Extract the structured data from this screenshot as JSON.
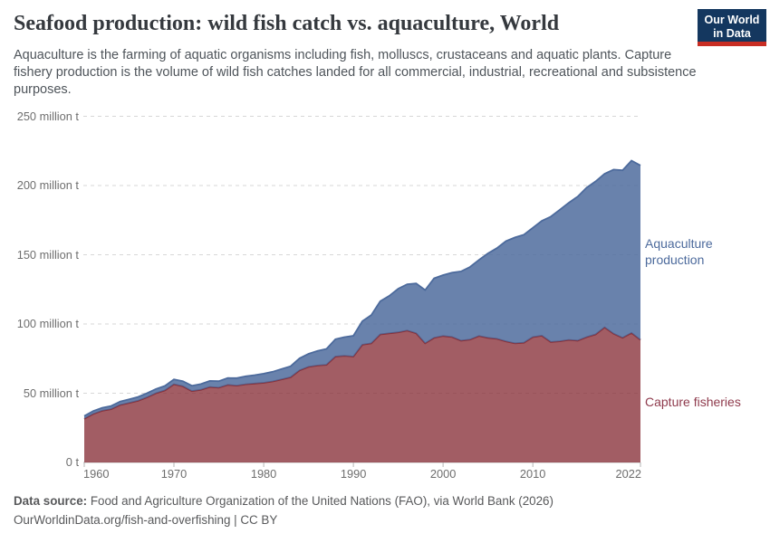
{
  "header": {
    "logo": {
      "line1": "Our World",
      "line2": "in Data",
      "bg_color": "#14375f",
      "bar_color": "#c82d23"
    }
  },
  "chart_data": {
    "type": "area",
    "stacked": true,
    "title": "Seafood production: wild fish catch vs. aquaculture, World",
    "subtitle": "Aquaculture is the farming of aquatic organisms including fish, molluscs, crustaceans and aquatic plants. Capture fishery production is the volume of wild fish catches landed for all commercial, industrial, recreational and subsistence purposes.",
    "unit": "million tonnes",
    "grid": "dashed-horizontal",
    "legend": "labels-right-of-plot",
    "ylim": [
      0,
      250
    ],
    "xlim": [
      1960,
      2022
    ],
    "years": [
      1960,
      1961,
      1962,
      1963,
      1964,
      1965,
      1966,
      1967,
      1968,
      1969,
      1970,
      1971,
      1972,
      1973,
      1974,
      1975,
      1976,
      1977,
      1978,
      1979,
      1980,
      1981,
      1982,
      1983,
      1984,
      1985,
      1986,
      1987,
      1988,
      1989,
      1990,
      1991,
      1992,
      1993,
      1994,
      1995,
      1996,
      1997,
      1998,
      1999,
      2000,
      2001,
      2002,
      2003,
      2004,
      2005,
      2006,
      2007,
      2008,
      2009,
      2010,
      2011,
      2012,
      2013,
      2014,
      2015,
      2016,
      2017,
      2018,
      2019,
      2020,
      2021,
      2022
    ],
    "series": [
      {
        "key": "capture-fisheries",
        "name": "Capture fisheries",
        "fill": "#883039",
        "fill_opacity": 0.78,
        "stroke": "#883039",
        "label_color": "#8f3b4d",
        "values": [
          31.5,
          35,
          37.3,
          38.5,
          41.5,
          43,
          44.5,
          47,
          50,
          52,
          56.5,
          55,
          51.5,
          52.5,
          54.5,
          54,
          56,
          55.5,
          56.5,
          57,
          57.5,
          58.5,
          60,
          61.5,
          66.5,
          69,
          70,
          70.5,
          76.5,
          77,
          76.5,
          85,
          86,
          92.5,
          93.3,
          94,
          95.2,
          93.3,
          86,
          90,
          91.3,
          90.6,
          88,
          88.7,
          91.3,
          90,
          89.3,
          87.4,
          86,
          86.5,
          90.5,
          91.5,
          87,
          87.5,
          88.5,
          88,
          90.5,
          92.5,
          97.5,
          93,
          90,
          93.5,
          88.5
        ]
      },
      {
        "key": "aquaculture-production",
        "name": "Aquaculture production",
        "fill": "#4C6A9C",
        "fill_opacity": 0.84,
        "stroke": "#4C6A9C",
        "label_color": "#4c6a9c",
        "values": [
          2,
          2.1,
          2.2,
          2.3,
          2.5,
          2.6,
          2.8,
          3,
          3.1,
          3.3,
          3.5,
          3.7,
          3.9,
          4.1,
          4.4,
          4.7,
          5,
          5.4,
          5.7,
          6.1,
          6.6,
          7,
          7.5,
          8,
          8.7,
          9.5,
          10.5,
          11.5,
          12.5,
          13.5,
          15,
          17,
          20.5,
          24,
          27,
          31.5,
          33.5,
          36,
          38.5,
          43,
          44,
          46.5,
          50,
          52.5,
          55,
          61,
          65.5,
          72.5,
          76.5,
          78,
          79,
          83,
          90.5,
          95,
          99,
          104,
          108,
          110.5,
          111,
          118.5,
          121,
          124.5,
          126
        ]
      }
    ],
    "yticks": [
      {
        "value": 0,
        "label": "0 t"
      },
      {
        "value": 50,
        "label": "50 million t"
      },
      {
        "value": 100,
        "label": "100 million t"
      },
      {
        "value": 150,
        "label": "150 million t"
      },
      {
        "value": 200,
        "label": "200 million t"
      },
      {
        "value": 250,
        "label": "250 million t"
      }
    ],
    "xticks": [
      {
        "value": 1960,
        "label": "1960",
        "align": "left"
      },
      {
        "value": 1970,
        "label": "1970",
        "align": "center"
      },
      {
        "value": 1980,
        "label": "1980",
        "align": "center"
      },
      {
        "value": 1990,
        "label": "1990",
        "align": "center"
      },
      {
        "value": 2000,
        "label": "2000",
        "align": "center"
      },
      {
        "value": 2010,
        "label": "2010",
        "align": "center"
      },
      {
        "value": 2022,
        "label": "2022",
        "align": "right"
      }
    ]
  },
  "footer": {
    "source_label": "Data source:",
    "source_text": "Food and Agriculture Organization of the United Nations (FAO), via World Bank (2026)",
    "link_line": "OurWorldinData.org/fish-and-overfishing | CC BY"
  }
}
